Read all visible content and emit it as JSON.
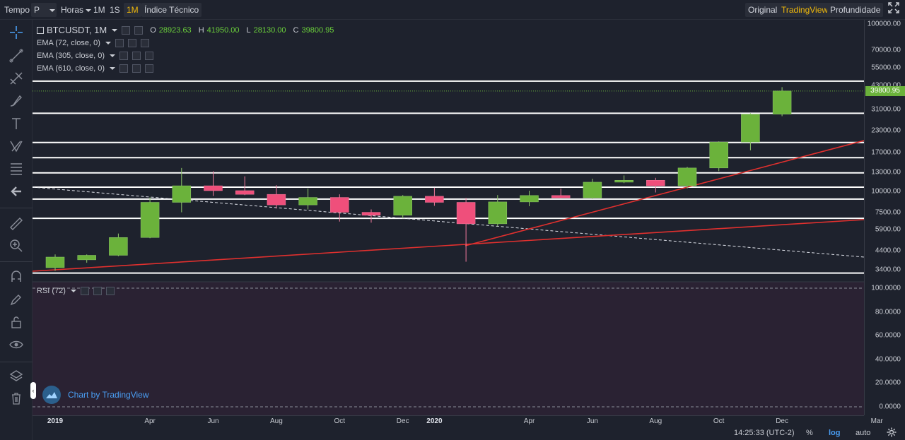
{
  "toolbar": {
    "tempo_label": "Tempo",
    "period_value": "P",
    "horas_label": "Horas",
    "interval_1m_small": "1M",
    "interval_1s": "1S",
    "interval_1m": "1M",
    "indicators": "Índice Técnico",
    "view_original": "Original",
    "view_tradingview": "TradingView",
    "view_depth": "Profundidade"
  },
  "legend": {
    "symbol": "BTCUSDT, 1M",
    "o_key": "O",
    "o_val": "28923.63",
    "h_key": "H",
    "h_val": "41950.00",
    "l_key": "L",
    "l_val": "28130.00",
    "c_key": "C",
    "c_val": "39800.95",
    "ema1": "EMA (72, close, 0)",
    "ema2": "EMA (305, close, 0)",
    "ema3": "EMA (610, close, 0)",
    "rsi": "RSI (72)"
  },
  "price_axis": {
    "labels": [
      "100000.00",
      "70000.00",
      "55000.00",
      "43000.00",
      "31000.00",
      "23000.00",
      "17000.00",
      "13000.00",
      "10000.00",
      "7500.00",
      "5900.00",
      "4400.00",
      "3400.00"
    ],
    "last_price": "39800.95"
  },
  "rsi_axis": {
    "labels": [
      "100.0000",
      "80.0000",
      "60.0000",
      "40.0000",
      "20.0000",
      "0.0000"
    ]
  },
  "time_axis": {
    "labels": [
      "2019",
      "Apr",
      "Jun",
      "Aug",
      "Oct",
      "Dec",
      "2020",
      "Apr",
      "Jun",
      "Aug",
      "Oct",
      "Dec",
      "Mar"
    ]
  },
  "bottom_bar": {
    "clock": "14:25:33 (UTC-2)",
    "percent": "%",
    "log": "log",
    "auto": "auto"
  },
  "watermark": "Chart by TradingView",
  "chart_data": {
    "type": "candlestick",
    "scale": "log",
    "candles": [
      {
        "o": 3500,
        "h": 4200,
        "l": 3350,
        "c": 4050
      },
      {
        "o": 3900,
        "h": 4200,
        "l": 3750,
        "c": 4150
      },
      {
        "o": 4150,
        "h": 5600,
        "l": 4100,
        "c": 5300
      },
      {
        "o": 5300,
        "h": 9200,
        "l": 5250,
        "c": 8600
      },
      {
        "o": 8600,
        "h": 13800,
        "l": 7500,
        "c": 10800
      },
      {
        "o": 10800,
        "h": 13200,
        "l": 9400,
        "c": 10100
      },
      {
        "o": 10100,
        "h": 12300,
        "l": 9500,
        "c": 9600
      },
      {
        "o": 9600,
        "h": 10900,
        "l": 7900,
        "c": 8300
      },
      {
        "o": 8300,
        "h": 10400,
        "l": 7800,
        "c": 9200
      },
      {
        "o": 9200,
        "h": 9600,
        "l": 6600,
        "c": 7500
      },
      {
        "o": 7500,
        "h": 7800,
        "l": 6500,
        "c": 7200
      },
      {
        "o": 7200,
        "h": 9500,
        "l": 6900,
        "c": 9350
      },
      {
        "o": 9350,
        "h": 10500,
        "l": 8200,
        "c": 8600
      },
      {
        "o": 8600,
        "h": 9150,
        "l": 3800,
        "c": 6400
      },
      {
        "o": 6400,
        "h": 9500,
        "l": 6200,
        "c": 8650
      },
      {
        "o": 8650,
        "h": 10100,
        "l": 8150,
        "c": 9450
      },
      {
        "o": 9450,
        "h": 10400,
        "l": 9100,
        "c": 9150
      },
      {
        "o": 9150,
        "h": 11900,
        "l": 9000,
        "c": 11350
      },
      {
        "o": 11350,
        "h": 12450,
        "l": 11200,
        "c": 11650
      },
      {
        "o": 11650,
        "h": 12050,
        "l": 9850,
        "c": 10800
      },
      {
        "o": 10800,
        "h": 14000,
        "l": 10400,
        "c": 13800
      },
      {
        "o": 13800,
        "h": 19900,
        "l": 13200,
        "c": 19700
      },
      {
        "o": 19700,
        "h": 29300,
        "l": 17600,
        "c": 28900
      },
      {
        "o": 28923.63,
        "h": 41950.0,
        "l": 28130.0,
        "c": 39800.95
      }
    ],
    "horizontal_levels": [
      45600,
      29300,
      19600,
      15900,
      12900,
      10600,
      9000,
      6900,
      3250
    ],
    "first_candle_month": "2019-01"
  },
  "colors": {
    "bull": "#6bb23b",
    "bear": "#ef4f7b",
    "trend": "#e0302e",
    "level": "#ffffff",
    "accent": "#f0b90b"
  }
}
